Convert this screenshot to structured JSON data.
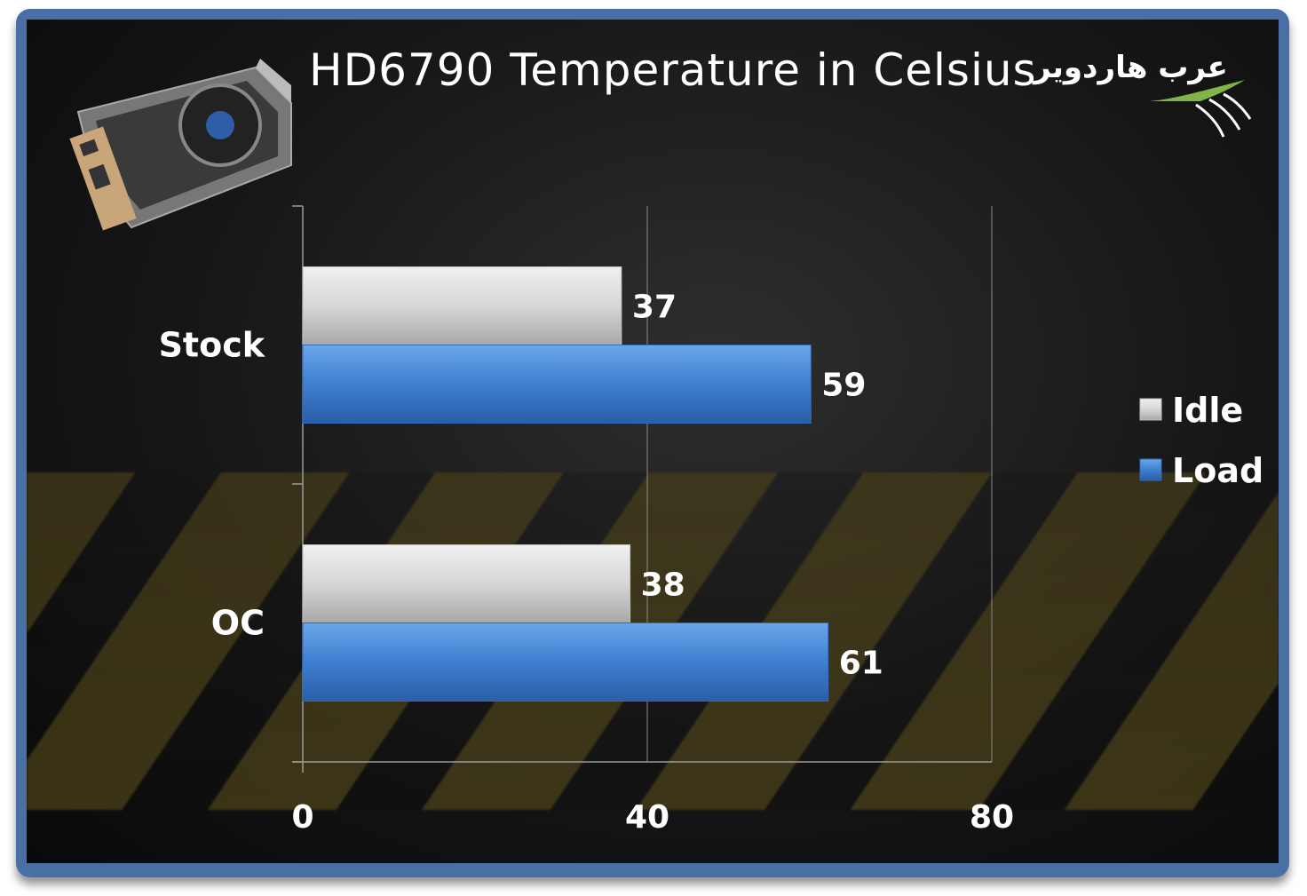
{
  "chart_data": {
    "type": "bar",
    "orientation": "horizontal",
    "title": "HD6790 Temperature in Celsius",
    "categories": [
      "Stock",
      "OC"
    ],
    "series": [
      {
        "name": "Idle",
        "values": [
          37,
          38
        ],
        "color": "#d4d4d4"
      },
      {
        "name": "Load",
        "values": [
          59,
          61
        ],
        "color": "#3f7fd0"
      }
    ],
    "xlim": [
      0,
      80
    ],
    "xticks": [
      0,
      40,
      80
    ],
    "grid": true,
    "legend": "right"
  },
  "branding": {
    "logo_text": "عرب هاردوير",
    "logo_icon": "arch-swoosh-icon",
    "product_image": "graphics-card-icon"
  },
  "colors": {
    "frame": "#4a6fa5",
    "background": "#161616",
    "stripe": "#685a1e"
  }
}
